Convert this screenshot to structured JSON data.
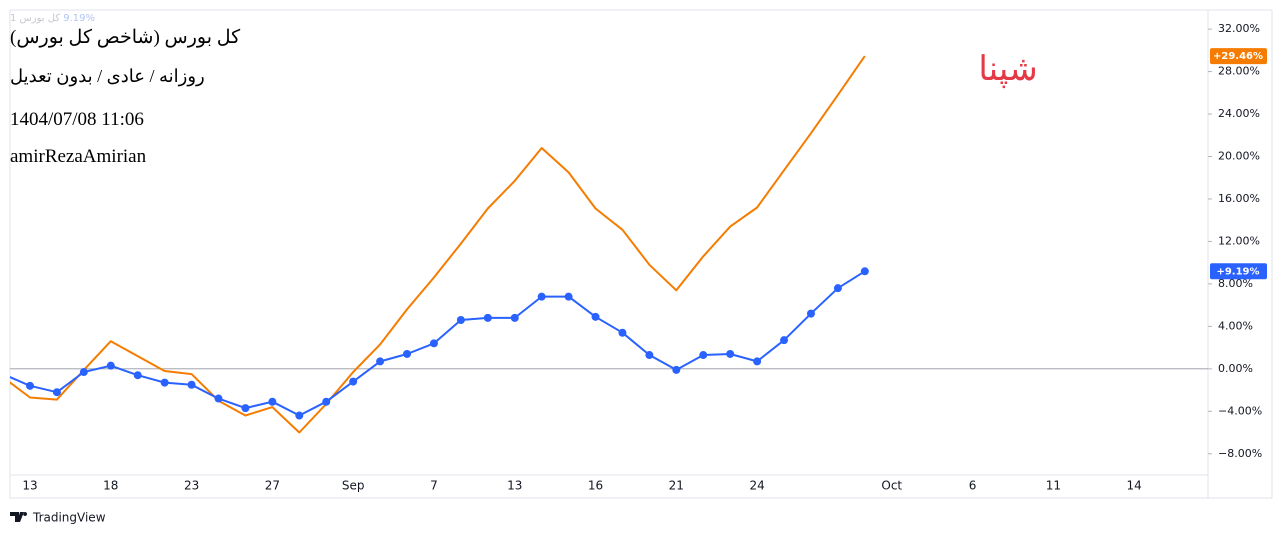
{
  "chart_data": {
    "type": "line",
    "title": "کل بورس (شاخص کل بورس)",
    "subtitle": "روزانه / عادی / بدون تعدیل",
    "annotations": [
      "1404/07/08 11:06",
      "amirRezaAmirian"
    ],
    "watermark": "شپنا",
    "legend": {
      "symbol": "کل بورس 1",
      "change": "9.19%"
    },
    "footer": "TradingView",
    "categories": [
      null,
      "13",
      null,
      null,
      "18",
      null,
      null,
      "23",
      null,
      null,
      "27",
      null,
      null,
      "Sep",
      null,
      null,
      "7",
      null,
      null,
      "13",
      null,
      null,
      "16",
      null,
      null,
      "21",
      null,
      null,
      "24",
      null,
      null,
      null,
      null,
      "Oct",
      null,
      null,
      "6",
      null,
      null,
      "11",
      null,
      null,
      "14",
      null,
      null
    ],
    "series": [
      {
        "color": "#f57c00",
        "values": [
          -0.8,
          -2.7,
          -2.9,
          -0.1,
          2.6,
          1.2,
          -0.2,
          -0.5,
          -3.0,
          -4.4,
          -3.6,
          -6.0,
          -3.3,
          -0.3,
          2.3,
          5.6,
          8.6,
          11.8,
          15.1,
          17.7,
          20.8,
          18.5,
          15.1,
          13.1,
          9.8,
          7.4,
          10.6,
          13.4,
          15.2,
          18.7,
          22.2,
          25.8,
          29.46,
          null,
          null,
          null,
          null,
          null,
          null,
          null,
          null,
          null,
          null,
          null,
          null
        ],
        "value_labels": [
          null,
          null,
          null,
          null,
          null,
          null,
          null,
          null,
          null,
          null,
          null,
          null,
          null,
          null,
          null,
          null,
          null,
          null,
          null,
          null,
          null,
          null,
          null,
          null,
          null,
          null,
          null,
          null,
          null,
          null,
          null,
          null,
          "+29.46%",
          null,
          null,
          null,
          null,
          null,
          null,
          null,
          null,
          null,
          null,
          null,
          null
        ]
      },
      {
        "name": "کل بورس 1",
        "color": "#2962ff",
        "markers": true,
        "values": [
          -0.5,
          -1.6,
          -2.2,
          -0.3,
          0.3,
          -0.6,
          -1.3,
          -1.5,
          -2.8,
          -3.7,
          -3.1,
          -4.4,
          -3.1,
          -1.2,
          0.7,
          1.4,
          2.4,
          4.6,
          4.8,
          4.8,
          6.8,
          6.8,
          4.9,
          3.4,
          1.3,
          -0.1,
          1.3,
          1.4,
          0.7,
          2.7,
          5.2,
          7.6,
          9.19,
          null,
          null,
          null,
          null,
          null,
          null,
          null,
          null,
          null,
          null,
          null,
          null
        ],
        "value_labels": [
          null,
          null,
          null,
          null,
          null,
          null,
          null,
          null,
          null,
          null,
          null,
          null,
          null,
          null,
          null,
          null,
          null,
          null,
          null,
          null,
          null,
          null,
          null,
          null,
          null,
          null,
          null,
          null,
          null,
          null,
          null,
          null,
          "+9.19%",
          null,
          null,
          null,
          null,
          null,
          null,
          null,
          null,
          null,
          null,
          null,
          null
        ]
      }
    ],
    "ylim": [
      -10,
      33.8
    ],
    "yticks": [
      {
        "value": -8,
        "label": "−8.00%"
      },
      {
        "value": -4,
        "label": "−4.00%"
      },
      {
        "value": 0,
        "label": "0.00%"
      },
      {
        "value": 4,
        "label": "4.00%"
      },
      {
        "value": 8,
        "label": "8.00%"
      },
      {
        "value": 12,
        "label": "12.00%"
      },
      {
        "value": 16,
        "label": "16.00%"
      },
      {
        "value": 20,
        "label": "20.00%"
      },
      {
        "value": 24,
        "label": "24.00%"
      },
      {
        "value": 28,
        "label": "28.00%"
      },
      {
        "value": 32,
        "label": "32.00%"
      }
    ],
    "zero_line": true
  }
}
